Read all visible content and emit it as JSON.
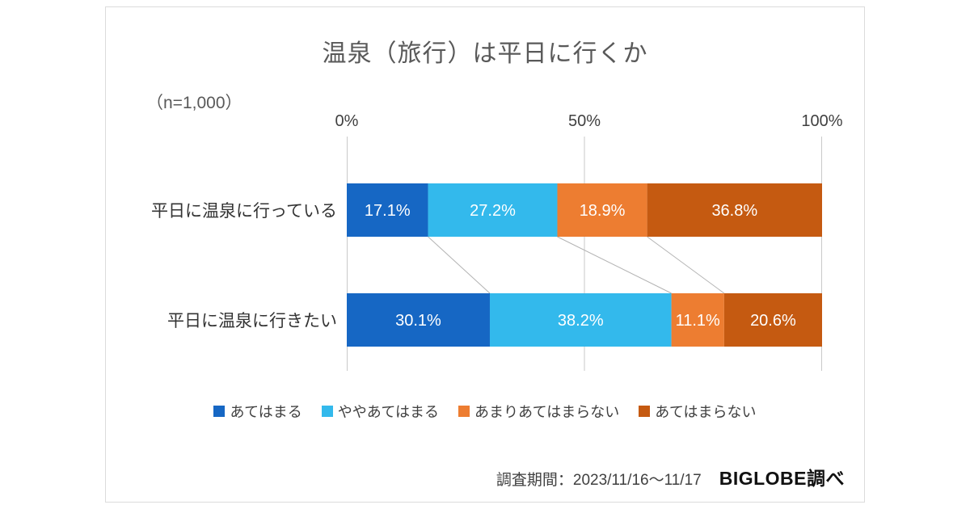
{
  "chart": {
    "title": "温泉（旅行）は平日に行くか",
    "n_label": "（n=1,000）",
    "footer": {
      "survey_period": "調査期間：2023/11/16～11/17",
      "source": "BIGLOBE調べ"
    }
  },
  "chart_data": {
    "type": "bar",
    "orientation": "horizontal",
    "stacked": true,
    "title": "温泉（旅行）は平日に行くか",
    "sample_size": "n=1,000",
    "categories": [
      "平日に温泉に行っている",
      "平日に温泉に行きたい"
    ],
    "series": [
      {
        "name": "あてはまる",
        "color": "#1667C4",
        "values": [
          17.1,
          30.1
        ]
      },
      {
        "name": "ややあてはまる",
        "color": "#33B9EC",
        "values": [
          27.2,
          38.2
        ]
      },
      {
        "name": "あまりあてはまらない",
        "color": "#ED7D31",
        "values": [
          18.9,
          11.1
        ]
      },
      {
        "name": "あてはまらない",
        "color": "#C55A11",
        "values": [
          36.8,
          20.6
        ]
      }
    ],
    "x_ticks": [
      {
        "value": 0,
        "label": "0%"
      },
      {
        "value": 50,
        "label": "50%"
      },
      {
        "value": 100,
        "label": "100%"
      }
    ],
    "xlim": [
      0,
      100
    ],
    "value_suffix": "%",
    "grid": true,
    "legend_position": "bottom",
    "gridline_color": "#C9C9C9",
    "connector_color": "#B3B3B3",
    "label_color": "#ffffff"
  }
}
